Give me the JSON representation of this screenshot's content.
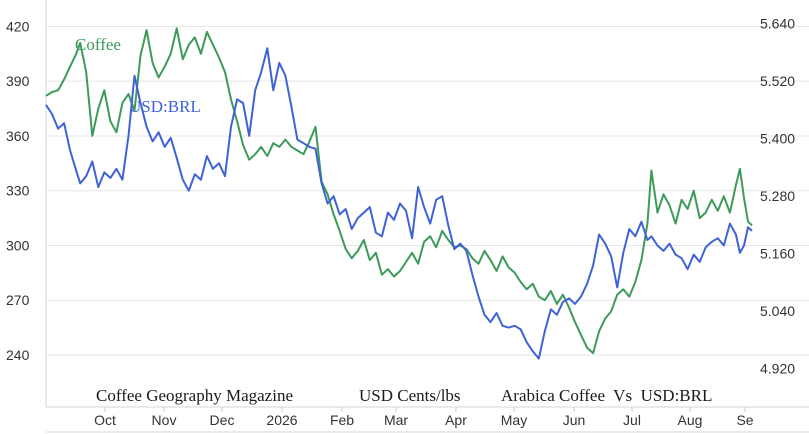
{
  "chart_data": {
    "type": "line",
    "footer": {
      "publisher": "Coffee Geography Magazine",
      "unit": "USD Cents/lbs",
      "title": "Arabica Coffee  Vs  USD:BRL"
    },
    "x_axis": {
      "ticks": [
        "Oct",
        "Nov",
        "Dec",
        "2026",
        "Feb",
        "Mar",
        "Apr",
        "May",
        "Jun",
        "Jul",
        "Aug",
        "Se"
      ],
      "range": [
        "2025-09-15",
        "2026-09-01"
      ]
    },
    "y_left": {
      "ticks": [
        420,
        390,
        360,
        330,
        300,
        270,
        240
      ],
      "range": [
        223,
        429
      ]
    },
    "y_right": {
      "ticks": [
        "5.640",
        "5.520",
        "5.400",
        "5.280",
        "5.160",
        "5.040",
        "4.920"
      ],
      "range": [
        4.884,
        5.668
      ]
    },
    "grid": true,
    "series": [
      {
        "name": "Coffee",
        "axis": "left",
        "color": "#3d9a5a",
        "points": [
          [
            "2025-09-15",
            382
          ],
          [
            "2025-09-18",
            384
          ],
          [
            "2025-09-21",
            385
          ],
          [
            "2025-09-24",
            391
          ],
          [
            "2025-09-27",
            398
          ],
          [
            "2025-09-30",
            405
          ],
          [
            "2025-10-02",
            411
          ],
          [
            "2025-10-05",
            395
          ],
          [
            "2025-10-08",
            360
          ],
          [
            "2025-10-11",
            375
          ],
          [
            "2025-10-14",
            385
          ],
          [
            "2025-10-17",
            368
          ],
          [
            "2025-10-20",
            362
          ],
          [
            "2025-10-23",
            378
          ],
          [
            "2025-10-26",
            383
          ],
          [
            "2025-10-29",
            374
          ],
          [
            "2025-11-01",
            404
          ],
          [
            "2025-11-04",
            418
          ],
          [
            "2025-11-07",
            400
          ],
          [
            "2025-11-10",
            392
          ],
          [
            "2025-11-13",
            398
          ],
          [
            "2025-11-16",
            405
          ],
          [
            "2025-11-19",
            419
          ],
          [
            "2025-11-22",
            402
          ],
          [
            "2025-11-25",
            410
          ],
          [
            "2025-11-28",
            414
          ],
          [
            "2025-12-01",
            405
          ],
          [
            "2025-12-04",
            417
          ],
          [
            "2025-12-07",
            410
          ],
          [
            "2025-12-10",
            403
          ],
          [
            "2025-12-13",
            395
          ],
          [
            "2025-12-16",
            380
          ],
          [
            "2025-12-19",
            368
          ],
          [
            "2025-12-22",
            355
          ],
          [
            "2025-12-25",
            347
          ],
          [
            "2025-12-28",
            350
          ],
          [
            "2025-12-31",
            354
          ],
          [
            "2026-01-03",
            349
          ],
          [
            "2026-01-06",
            356
          ],
          [
            "2026-01-09",
            354
          ],
          [
            "2026-01-12",
            358
          ],
          [
            "2026-01-15",
            354
          ],
          [
            "2026-01-18",
            352
          ],
          [
            "2026-01-21",
            350
          ],
          [
            "2026-01-24",
            357
          ],
          [
            "2026-01-27",
            365
          ],
          [
            "2026-01-30",
            335
          ],
          [
            "2026-02-02",
            328
          ],
          [
            "2026-02-05",
            317
          ],
          [
            "2026-02-08",
            308
          ],
          [
            "2026-02-11",
            298
          ],
          [
            "2026-02-14",
            293
          ],
          [
            "2026-02-17",
            297
          ],
          [
            "2026-02-20",
            303
          ],
          [
            "2026-02-23",
            292
          ],
          [
            "2026-02-26",
            296
          ],
          [
            "2026-03-01",
            284
          ],
          [
            "2026-03-04",
            287
          ],
          [
            "2026-03-07",
            283
          ],
          [
            "2026-03-10",
            286
          ],
          [
            "2026-03-13",
            291
          ],
          [
            "2026-03-16",
            296
          ],
          [
            "2026-03-19",
            290
          ],
          [
            "2026-03-22",
            302
          ],
          [
            "2026-03-25",
            305
          ],
          [
            "2026-03-28",
            299
          ],
          [
            "2026-03-31",
            308
          ],
          [
            "2026-04-03",
            303
          ],
          [
            "2026-04-06",
            299
          ],
          [
            "2026-04-09",
            300
          ],
          [
            "2026-04-12",
            298
          ],
          [
            "2026-04-15",
            293
          ],
          [
            "2026-04-18",
            290
          ],
          [
            "2026-04-21",
            297
          ],
          [
            "2026-04-24",
            292
          ],
          [
            "2026-04-27",
            286
          ],
          [
            "2026-04-30",
            294
          ],
          [
            "2026-05-03",
            288
          ],
          [
            "2026-05-06",
            285
          ],
          [
            "2026-05-09",
            280
          ],
          [
            "2026-05-12",
            276
          ],
          [
            "2026-05-15",
            279
          ],
          [
            "2026-05-18",
            272
          ],
          [
            "2026-05-21",
            270
          ],
          [
            "2026-05-24",
            275
          ],
          [
            "2026-05-27",
            268
          ],
          [
            "2026-05-30",
            273
          ],
          [
            "2026-06-02",
            266
          ],
          [
            "2026-06-05",
            258
          ],
          [
            "2026-06-08",
            251
          ],
          [
            "2026-06-11",
            244
          ],
          [
            "2026-06-14",
            241
          ],
          [
            "2026-06-17",
            253
          ],
          [
            "2026-06-20",
            260
          ],
          [
            "2026-06-23",
            264
          ],
          [
            "2026-06-26",
            273
          ],
          [
            "2026-06-29",
            276
          ],
          [
            "2026-07-02",
            272
          ],
          [
            "2026-07-05",
            280
          ],
          [
            "2026-07-08",
            292
          ],
          [
            "2026-07-11",
            312
          ],
          [
            "2026-07-13",
            341
          ],
          [
            "2026-07-16",
            318
          ],
          [
            "2026-07-19",
            328
          ],
          [
            "2026-07-22",
            322
          ],
          [
            "2026-07-25",
            312
          ],
          [
            "2026-07-28",
            325
          ],
          [
            "2026-07-31",
            320
          ],
          [
            "2026-08-03",
            330
          ],
          [
            "2026-08-06",
            315
          ],
          [
            "2026-08-09",
            318
          ],
          [
            "2026-08-12",
            325
          ],
          [
            "2026-08-15",
            319
          ],
          [
            "2026-08-18",
            327
          ],
          [
            "2026-08-21",
            318
          ],
          [
            "2026-08-24",
            333
          ],
          [
            "2026-08-26",
            342
          ],
          [
            "2026-08-28",
            326
          ],
          [
            "2026-08-30",
            313
          ],
          [
            "2026-09-01",
            311
          ]
        ]
      },
      {
        "name": "USD:BRL",
        "axis": "left",
        "color": "#3f62d6",
        "points": [
          [
            "2025-09-15",
            377
          ],
          [
            "2025-09-18",
            372
          ],
          [
            "2025-09-21",
            364
          ],
          [
            "2025-09-24",
            367
          ],
          [
            "2025-09-27",
            352
          ],
          [
            "2025-09-30",
            341
          ],
          [
            "2025-10-02",
            334
          ],
          [
            "2025-10-05",
            338
          ],
          [
            "2025-10-08",
            346
          ],
          [
            "2025-10-11",
            332
          ],
          [
            "2025-10-14",
            340
          ],
          [
            "2025-10-17",
            337
          ],
          [
            "2025-10-20",
            342
          ],
          [
            "2025-10-23",
            336
          ],
          [
            "2025-10-26",
            360
          ],
          [
            "2025-10-29",
            393
          ],
          [
            "2025-11-01",
            378
          ],
          [
            "2025-11-04",
            365
          ],
          [
            "2025-11-07",
            357
          ],
          [
            "2025-11-10",
            362
          ],
          [
            "2025-11-13",
            354
          ],
          [
            "2025-11-16",
            359
          ],
          [
            "2025-11-19",
            348
          ],
          [
            "2025-11-22",
            336
          ],
          [
            "2025-11-25",
            330
          ],
          [
            "2025-11-28",
            339
          ],
          [
            "2025-12-01",
            336
          ],
          [
            "2025-12-04",
            349
          ],
          [
            "2025-12-07",
            342
          ],
          [
            "2025-12-10",
            345
          ],
          [
            "2025-12-13",
            338
          ],
          [
            "2025-12-16",
            365
          ],
          [
            "2025-12-19",
            380
          ],
          [
            "2025-12-22",
            378
          ],
          [
            "2025-12-25",
            360
          ],
          [
            "2025-12-28",
            385
          ],
          [
            "2025-12-31",
            395
          ],
          [
            "2026-01-03",
            408
          ],
          [
            "2026-01-06",
            385
          ],
          [
            "2026-01-09",
            400
          ],
          [
            "2026-01-12",
            393
          ],
          [
            "2026-01-15",
            376
          ],
          [
            "2026-01-18",
            358
          ],
          [
            "2026-01-21",
            356
          ],
          [
            "2026-01-24",
            354
          ],
          [
            "2026-01-27",
            353
          ],
          [
            "2026-01-30",
            334
          ],
          [
            "2026-02-02",
            323
          ],
          [
            "2026-02-05",
            327
          ],
          [
            "2026-02-08",
            317
          ],
          [
            "2026-02-11",
            320
          ],
          [
            "2026-02-14",
            309
          ],
          [
            "2026-02-17",
            315
          ],
          [
            "2026-02-20",
            318
          ],
          [
            "2026-02-23",
            321
          ],
          [
            "2026-02-26",
            307
          ],
          [
            "2026-03-01",
            305
          ],
          [
            "2026-03-04",
            318
          ],
          [
            "2026-03-07",
            314
          ],
          [
            "2026-03-10",
            323
          ],
          [
            "2026-03-13",
            319
          ],
          [
            "2026-03-16",
            304
          ],
          [
            "2026-03-19",
            332
          ],
          [
            "2026-03-22",
            321
          ],
          [
            "2026-03-25",
            312
          ],
          [
            "2026-03-28",
            325
          ],
          [
            "2026-03-31",
            327
          ],
          [
            "2026-04-03",
            311
          ],
          [
            "2026-04-06",
            298
          ],
          [
            "2026-04-09",
            301
          ],
          [
            "2026-04-12",
            297
          ],
          [
            "2026-04-15",
            284
          ],
          [
            "2026-04-18",
            272
          ],
          [
            "2026-04-21",
            262
          ],
          [
            "2026-04-24",
            258
          ],
          [
            "2026-04-27",
            263
          ],
          [
            "2026-04-30",
            256
          ],
          [
            "2026-05-03",
            255
          ],
          [
            "2026-05-06",
            256
          ],
          [
            "2026-05-09",
            254
          ],
          [
            "2026-05-12",
            247
          ],
          [
            "2026-05-15",
            242
          ],
          [
            "2026-05-18",
            238
          ],
          [
            "2026-05-21",
            253
          ],
          [
            "2026-05-24",
            265
          ],
          [
            "2026-05-27",
            262
          ],
          [
            "2026-05-30",
            269
          ],
          [
            "2026-06-02",
            271
          ],
          [
            "2026-06-05",
            268
          ],
          [
            "2026-06-08",
            272
          ],
          [
            "2026-06-11",
            279
          ],
          [
            "2026-06-14",
            289
          ],
          [
            "2026-06-17",
            306
          ],
          [
            "2026-06-20",
            301
          ],
          [
            "2026-06-23",
            294
          ],
          [
            "2026-06-26",
            277
          ],
          [
            "2026-06-29",
            296
          ],
          [
            "2026-07-02",
            309
          ],
          [
            "2026-07-05",
            305
          ],
          [
            "2026-07-08",
            313
          ],
          [
            "2026-07-11",
            303
          ],
          [
            "2026-07-13",
            305
          ],
          [
            "2026-07-16",
            300
          ],
          [
            "2026-07-19",
            297
          ],
          [
            "2026-07-22",
            301
          ],
          [
            "2026-07-25",
            295
          ],
          [
            "2026-07-28",
            293
          ],
          [
            "2026-07-31",
            287
          ],
          [
            "2026-08-03",
            295
          ],
          [
            "2026-08-06",
            291
          ],
          [
            "2026-08-09",
            299
          ],
          [
            "2026-08-12",
            302
          ],
          [
            "2026-08-15",
            304
          ],
          [
            "2026-08-18",
            300
          ],
          [
            "2026-08-21",
            312
          ],
          [
            "2026-08-24",
            306
          ],
          [
            "2026-08-26",
            296
          ],
          [
            "2026-08-28",
            300
          ],
          [
            "2026-08-30",
            310
          ],
          [
            "2026-09-01",
            308
          ]
        ]
      }
    ]
  }
}
